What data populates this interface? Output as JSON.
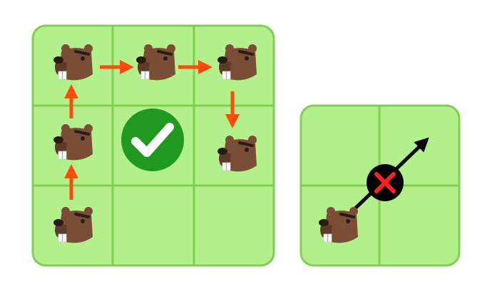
{
  "colors": {
    "cell_fill": "#b3f08c",
    "grid_line": "#7fcf52",
    "path_arrow": "#ff4a0d",
    "check_circle": "#1f9a1f",
    "check_mark": "#ffffff",
    "cross_circle": "#000000",
    "cross_mark": "#ff2020",
    "diagonal_arrow": "#000000",
    "beaver_body": "#7a4e36",
    "beaver_dark": "#3b2a22",
    "beaver_teeth": "#ffffff"
  },
  "left_grid": {
    "rows": 3,
    "cols": 3,
    "beaver_path": [
      [
        0,
        2
      ],
      [
        0,
        1
      ],
      [
        0,
        0
      ],
      [
        1,
        0
      ],
      [
        2,
        0
      ],
      [
        2,
        1
      ]
    ],
    "result": "valid",
    "result_icon": "checkmark-icon"
  },
  "right_grid": {
    "rows": 2,
    "cols": 2,
    "beaver_cell": [
      0,
      1
    ],
    "move": "diagonal",
    "result": "invalid",
    "result_icon": "cross-icon"
  }
}
